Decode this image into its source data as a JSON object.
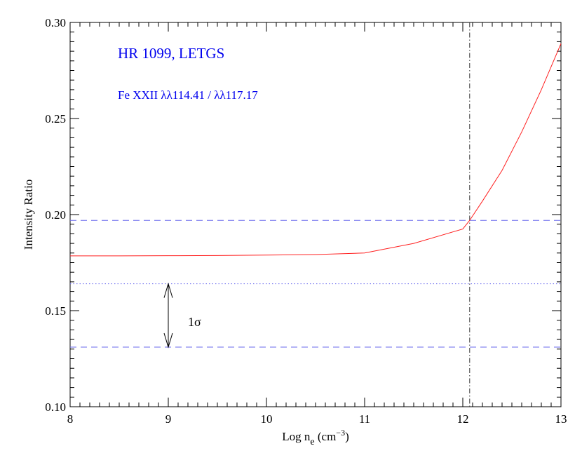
{
  "chart_data": {
    "type": "line",
    "xlabel": "Log n_e (cm^-3)",
    "ylabel": "Intensity  Ratio",
    "xlim": [
      8,
      13
    ],
    "ylim": [
      0.1,
      0.3
    ],
    "xticks": [
      "8",
      "9",
      "10",
      "11",
      "12",
      "13"
    ],
    "yticks": [
      "0.10",
      "0.15",
      "0.20",
      "0.25",
      "0.30"
    ],
    "grid": false,
    "annotations": {
      "title": "HR 1099, LETGS",
      "subtitle": "Fe XXII λλ114.41 / λλ117.17",
      "sigma_label": "1σ"
    },
    "series": [
      {
        "color": "#ff2020",
        "x": [
          8.0,
          8.5,
          9.0,
          9.5,
          10.0,
          10.5,
          11.0,
          11.5,
          12.0,
          12.07,
          12.2,
          12.4,
          12.6,
          12.8,
          13.0
        ],
        "y": [
          0.1785,
          0.1785,
          0.1786,
          0.1787,
          0.1789,
          0.1792,
          0.18,
          0.185,
          0.1925,
          0.197,
          0.207,
          0.223,
          0.243,
          0.265,
          0.289
        ]
      }
    ],
    "reference_lines": {
      "upper_dashed_y": 0.197,
      "dotted_y": 0.164,
      "lower_dashed_y": 0.131,
      "vertical_dashdot_x": 12.07,
      "sigma_arrow_x": 9.0,
      "reference_color": "#6a6aee",
      "vertical_color": "#333333"
    }
  }
}
